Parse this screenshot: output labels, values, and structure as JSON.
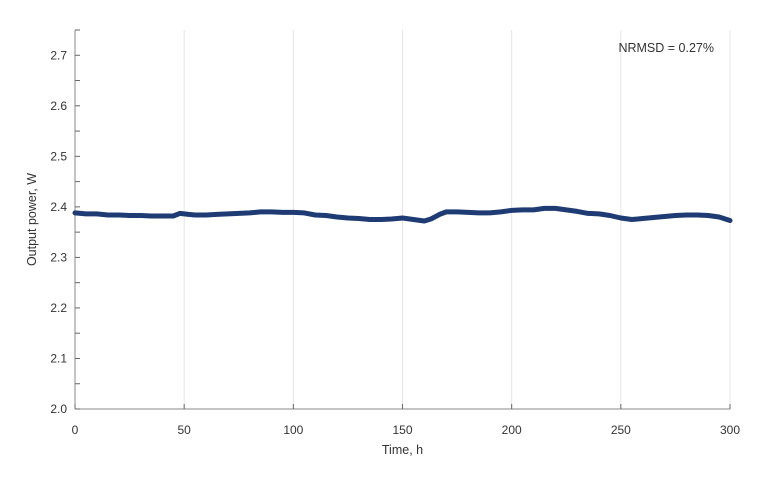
{
  "chart_data": {
    "type": "line",
    "xlabel": "Time, h",
    "ylabel": "Output power, W",
    "xlim": [
      0,
      300
    ],
    "ylim": [
      2.0,
      2.75
    ],
    "xticks": [
      0,
      50,
      100,
      150,
      200,
      250,
      300
    ],
    "xtick_labels": [
      "0",
      "50",
      "100",
      "150",
      "200",
      "250",
      "300"
    ],
    "yticks": [
      2.0,
      2.1,
      2.2,
      2.3,
      2.4,
      2.5,
      2.6,
      2.7
    ],
    "ytick_labels": [
      "2.0",
      "2.1",
      "2.2",
      "2.3",
      "2.4",
      "2.5",
      "2.6",
      "2.7"
    ],
    "grid": "vertical",
    "annotation": "NRMSD = 0.27%",
    "annotation_position": "top-right",
    "series": [
      {
        "color": "#1f3b73",
        "x": [
          0,
          5,
          10,
          15,
          20,
          25,
          30,
          35,
          40,
          45,
          48,
          52,
          55,
          60,
          65,
          70,
          75,
          80,
          85,
          90,
          95,
          100,
          105,
          110,
          115,
          120,
          125,
          130,
          135,
          140,
          145,
          150,
          155,
          160,
          163,
          167,
          170,
          175,
          180,
          185,
          190,
          195,
          200,
          205,
          210,
          215,
          220,
          225,
          230,
          235,
          240,
          245,
          250,
          255,
          260,
          265,
          270,
          275,
          280,
          285,
          290,
          295,
          300
        ],
        "y": [
          2.388,
          2.386,
          2.386,
          2.384,
          2.384,
          2.383,
          2.383,
          2.382,
          2.382,
          2.382,
          2.387,
          2.385,
          2.384,
          2.384,
          2.385,
          2.386,
          2.387,
          2.388,
          2.39,
          2.39,
          2.389,
          2.389,
          2.388,
          2.384,
          2.383,
          2.38,
          2.378,
          2.377,
          2.375,
          2.375,
          2.376,
          2.378,
          2.375,
          2.372,
          2.376,
          2.385,
          2.39,
          2.39,
          2.389,
          2.388,
          2.388,
          2.39,
          2.393,
          2.394,
          2.394,
          2.397,
          2.397,
          2.394,
          2.391,
          2.387,
          2.386,
          2.383,
          2.378,
          2.375,
          2.377,
          2.379,
          2.381,
          2.383,
          2.384,
          2.384,
          2.383,
          2.38,
          2.373
        ]
      }
    ]
  }
}
